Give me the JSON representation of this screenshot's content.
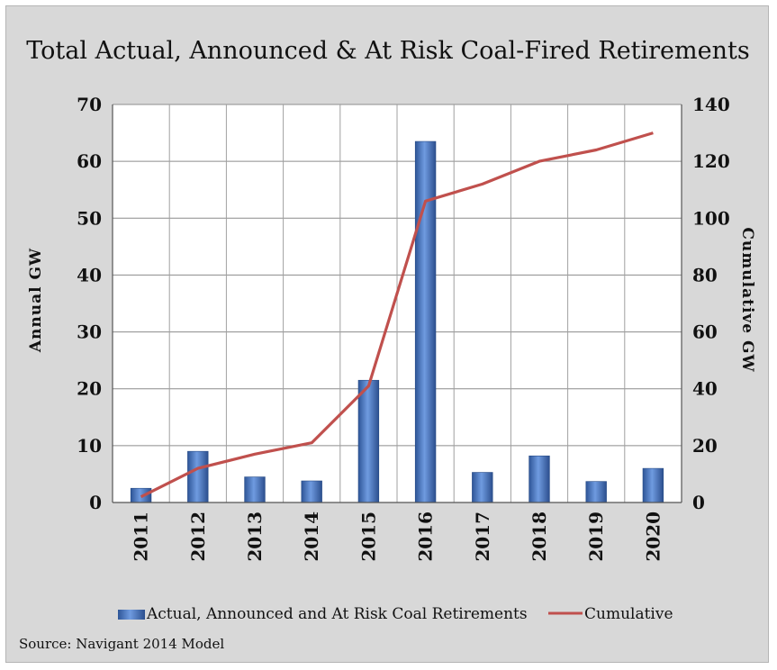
{
  "chart_data": {
    "type": "bar",
    "title": "Total Actual, Announced & At Risk Coal-Fired Retirements",
    "categories": [
      "2011",
      "2012",
      "2013",
      "2014",
      "2015",
      "2016",
      "2017",
      "2018",
      "2019",
      "2020"
    ],
    "series": [
      {
        "name": "Actual,  Announced and At Risk Coal Retirements",
        "type": "bar",
        "axis": "left",
        "values": [
          2.5,
          9,
          4.5,
          3.8,
          21.5,
          63.5,
          5.3,
          8.2,
          3.7,
          6
        ],
        "color": "#4a7ac4"
      },
      {
        "name": "Cumulative",
        "type": "line",
        "axis": "right",
        "values": [
          2,
          12,
          17,
          21,
          41,
          106,
          112,
          120,
          124,
          130
        ],
        "color": "#c0504d"
      }
    ],
    "ylabel": "Annual GW",
    "y2label": "Cumulative GW",
    "ylim": [
      0,
      70
    ],
    "y2lim": [
      0,
      140
    ],
    "yticks": [
      "0",
      "10",
      "20",
      "30",
      "40",
      "50",
      "60",
      "70"
    ],
    "y2ticks": [
      "0",
      "20",
      "40",
      "60",
      "80",
      "100",
      "120",
      "140"
    ],
    "grid": true,
    "legend": "bottom",
    "source": "Source: Navigant  2014 Model"
  }
}
